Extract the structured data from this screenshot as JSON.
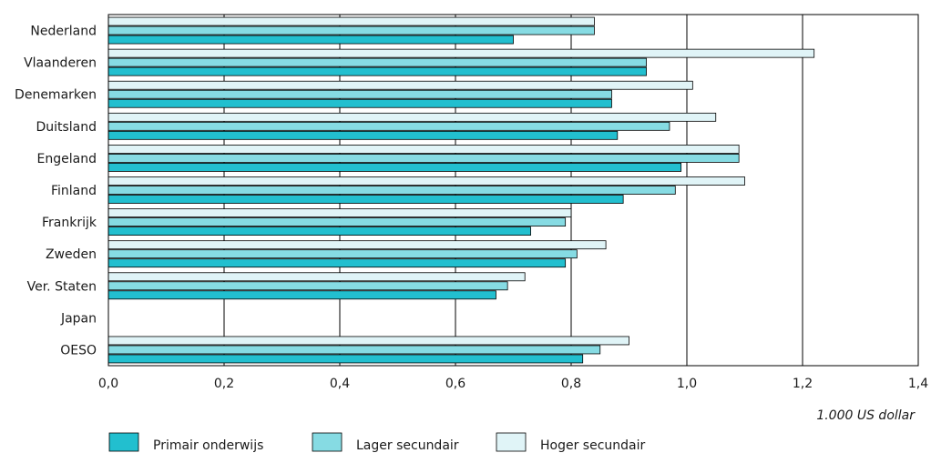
{
  "chart_data": {
    "type": "bar",
    "orientation": "horizontal",
    "categories": [
      "Nederland",
      "Vlaanderen",
      "Denemarken",
      "Duitsland",
      "Engeland",
      "Finland",
      "Frankrijk",
      "Zweden",
      "Ver. Staten",
      "Japan",
      "OESO"
    ],
    "series": [
      {
        "name": "Primair onderwijs",
        "color": "#22bfcf",
        "values": [
          0.7,
          0.93,
          0.87,
          0.88,
          0.99,
          0.89,
          0.73,
          0.79,
          0.67,
          null,
          0.82
        ]
      },
      {
        "name": "Lager secundair",
        "color": "#86dbe3",
        "values": [
          0.84,
          0.93,
          0.87,
          0.97,
          1.09,
          0.98,
          0.79,
          0.81,
          0.69,
          null,
          0.85
        ]
      },
      {
        "name": "Hoger secundair",
        "color": "#e0f4f7",
        "values": [
          0.84,
          1.22,
          1.01,
          1.05,
          1.09,
          1.1,
          0.8,
          0.86,
          0.72,
          null,
          0.9
        ]
      }
    ],
    "xlim": [
      0,
      1.4
    ],
    "xticks": [
      0,
      0.2,
      0.4,
      0.6,
      0.8,
      1.0,
      1.2,
      1.4
    ],
    "xtick_labels": [
      "0,0",
      "0,2",
      "0,4",
      "0,6",
      "0,8",
      "1,0",
      "1,2",
      "1,4"
    ],
    "unit_label": "1.000 US dollar",
    "grid": "vertical",
    "legend_position": "bottom-left"
  }
}
